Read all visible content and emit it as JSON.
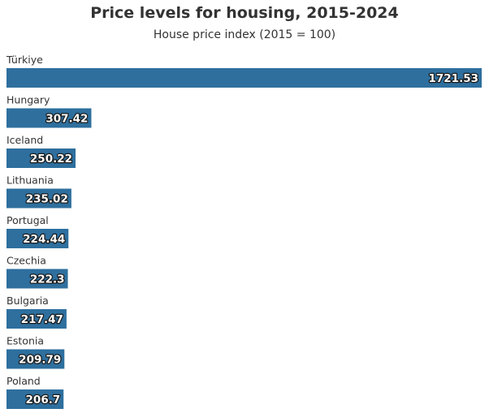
{
  "chart_data": {
    "type": "bar",
    "orientation": "horizontal",
    "title": "Price levels for housing, 2015-2024",
    "subtitle": "House price index (2015 = 100)",
    "categories": [
      "Türkiye",
      "Hungary",
      "Iceland",
      "Lithuania",
      "Portugal",
      "Czechia",
      "Bulgaria",
      "Estonia",
      "Poland"
    ],
    "values": [
      1721.53,
      307.42,
      250.22,
      235.02,
      224.44,
      222.3,
      217.47,
      209.79,
      206.7
    ],
    "value_labels": [
      "1721.53",
      "307.42",
      "250.22",
      "235.02",
      "224.44",
      "222.3",
      "217.47",
      "209.79",
      "206.7"
    ],
    "xlim": [
      0,
      1721.53
    ],
    "grid": false,
    "legend": "none",
    "bar_color": "#2e6f9e"
  }
}
